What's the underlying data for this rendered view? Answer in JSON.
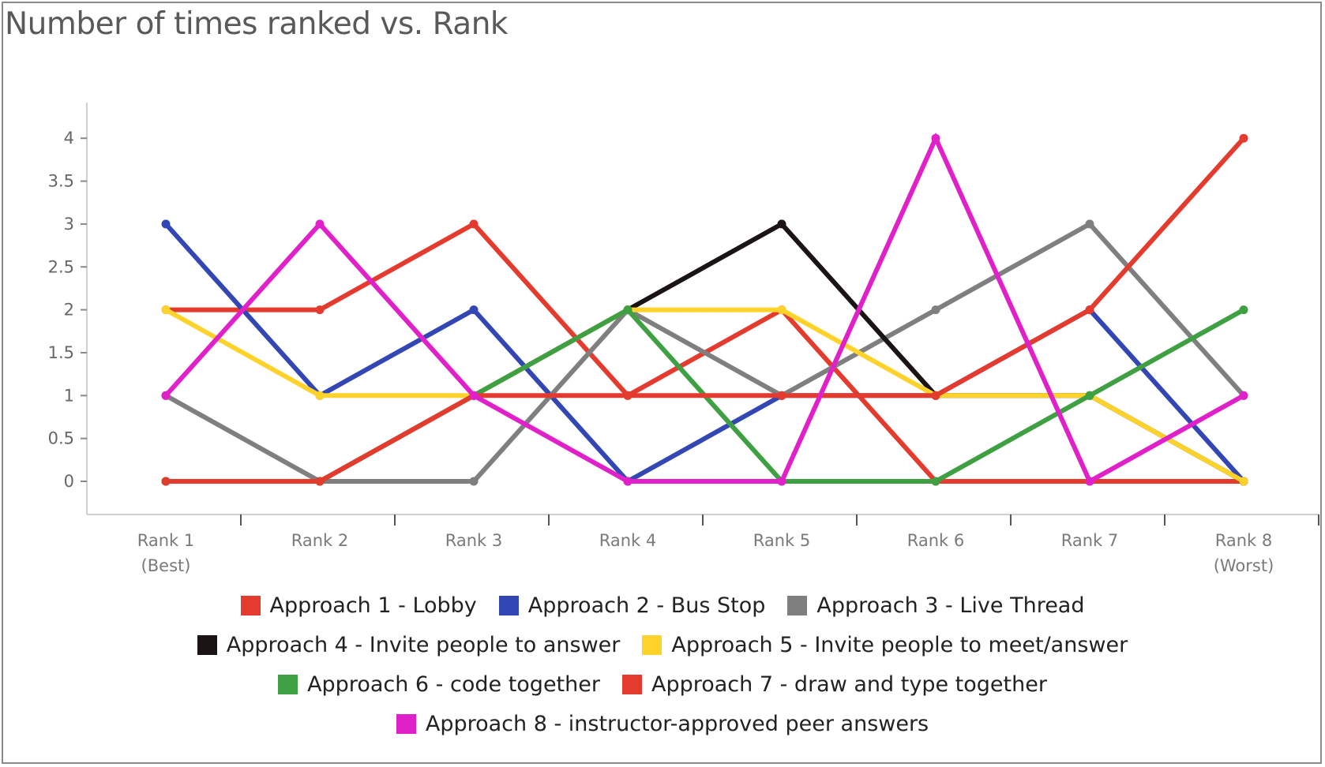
{
  "chart_data": {
    "type": "line",
    "title": "Number of times ranked vs. Rank",
    "xlabel": "",
    "ylabel": "",
    "categories": [
      [
        "Rank 1",
        "(Best)"
      ],
      [
        "Rank 2"
      ],
      [
        "Rank 3"
      ],
      [
        "Rank 4"
      ],
      [
        "Rank 5"
      ],
      [
        "Rank 6"
      ],
      [
        "Rank 7"
      ],
      [
        "Rank 8",
        "(Worst)"
      ]
    ],
    "ylim": [
      -0.4,
      4.4
    ],
    "yticks": [
      0,
      0.5,
      1,
      1.5,
      2,
      2.5,
      3,
      3.5,
      4
    ],
    "ytick_labels": [
      "0",
      "0.5",
      "1",
      "1.5",
      "2",
      "2.5",
      "3",
      "3.5",
      "4"
    ],
    "grid": false,
    "legend_position": "bottom",
    "series": [
      {
        "name": "Approach 1 - Lobby",
        "color": "#e33b2e",
        "values": [
          2,
          2,
          3,
          1,
          2,
          0,
          0,
          0
        ]
      },
      {
        "name": "Approach 2 - Bus Stop",
        "color": "#3347b4",
        "values": [
          3,
          1,
          2,
          0,
          1,
          1,
          2,
          0
        ]
      },
      {
        "name": "Approach 3 - Live Thread",
        "color": "#7f7f7f",
        "values": [
          1,
          0,
          0,
          2,
          1,
          2,
          3,
          1
        ]
      },
      {
        "name": "Approach 4 - Invite people to answer",
        "color": "#1a1414",
        "values": [
          0,
          0,
          1,
          2,
          3,
          1,
          1,
          0
        ]
      },
      {
        "name": "Approach 5 - Invite people to meet/answer",
        "color": "#fdd22b",
        "values": [
          2,
          1,
          1,
          2,
          2,
          1,
          1,
          0
        ]
      },
      {
        "name": "Approach 6 - code together",
        "color": "#3ea043",
        "values": [
          0,
          0,
          1,
          2,
          0,
          0,
          1,
          2
        ]
      },
      {
        "name": "Approach 7 - draw and type together",
        "color": "#e33b2e",
        "values": [
          0,
          0,
          1,
          1,
          1,
          1,
          2,
          4
        ]
      },
      {
        "name": "Approach 8 - instructor-approved peer answers",
        "color": "#e021c9",
        "values": [
          1,
          3,
          1,
          0,
          0,
          4,
          0,
          1
        ]
      }
    ],
    "legend_rows": [
      [
        0,
        1,
        2
      ],
      [
        3,
        4
      ],
      [
        5,
        6
      ],
      [
        7
      ]
    ]
  }
}
